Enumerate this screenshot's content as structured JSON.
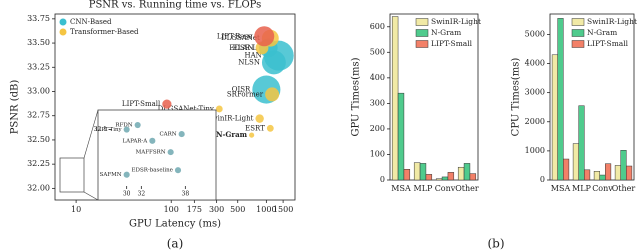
{
  "panel_labels": [
    "(a)",
    "(b)"
  ],
  "chart_data": [
    {
      "type": "scatter",
      "title": "PSNR vs. Running time vs. FLOPs",
      "x_label": "GPU Latency (ms)",
      "y_label": "PSNR (dB)",
      "xscale": "log",
      "xlim": [
        6,
        2000
      ],
      "xticks": [
        10,
        100,
        175,
        300,
        500,
        1000,
        1500
      ],
      "ylim": [
        31.88,
        33.8
      ],
      "yticks": [
        {
          "value": 32,
          "label": "32.00"
        },
        {
          "value": 32.25,
          "label": "32.25"
        },
        {
          "value": 32.5,
          "label": "32.50"
        },
        {
          "value": 32.75,
          "label": "32.75"
        },
        {
          "value": 33,
          "label": "33.00"
        },
        {
          "value": 33.25,
          "label": "33.25"
        },
        {
          "value": 33.5,
          "label": "33.50"
        },
        {
          "value": 33.75,
          "label": "33.75"
        }
      ],
      "legend": "upper left",
      "series": [
        {
          "name": "CNN-Based",
          "color": "#3bbfcf",
          "labels": [
            "HAN",
            "NLSN",
            "EDSR-L",
            "OISR"
          ],
          "x": [
            1350,
            1200,
            1050,
            1000
          ],
          "values": [
            33.37,
            33.3,
            33.45,
            33.02
          ],
          "sizes": [
            150,
            90,
            50,
            130
          ]
        },
        {
          "name": "Transformer-Based",
          "color": "#f5c542",
          "labels": [
            "DLGSANet",
            "ELAN",
            "SRFormer",
            "SwinIR-Light",
            "ESRT",
            "DLGSANet-Tiny",
            "ELAN-Light"
          ],
          "x": [
            1100,
            900,
            1150,
            850,
            1100,
            320,
            250
          ],
          "values": [
            33.55,
            33.45,
            32.97,
            32.72,
            32.62,
            32.82,
            32.72
          ],
          "sizes": [
            40,
            20,
            25,
            6,
            3,
            3,
            3
          ]
        },
        {
          "color": "#e8604c",
          "labels": [
            "LIPT-Base",
            "LIPT-Small"
          ],
          "x": [
            950,
            90
          ],
          "values": [
            33.57,
            32.87
          ],
          "sizes": [
            60,
            8
          ]
        },
        {
          "color": "#f5c542",
          "bold": true,
          "labels": [
            "N-Gram"
          ],
          "x": [
            700
          ],
          "values": [
            32.55
          ],
          "sizes": [
            1
          ]
        }
      ]
    },
    {
      "type": "scatter",
      "xlim": [
        28,
        40
      ],
      "xticks": [
        30,
        32,
        38
      ],
      "ylim": [
        31.85,
        32.16
      ],
      "yticks": [
        32.1
      ],
      "series": [
        {
          "color": "#6fa8b0",
          "labels": [
            "LIPT-Tiny",
            "RFDN",
            "LAPAR-A",
            "CARN",
            "MAFFSRN",
            "EDSR-baseline",
            "SAFMN"
          ],
          "x": [
            30,
            31.5,
            33.5,
            37.5,
            36,
            37,
            30
          ],
          "values": [
            32.1,
            32.12,
            32.05,
            32.08,
            32,
            31.92,
            31.9
          ],
          "sizes": [
            2,
            2,
            2,
            2,
            2,
            2,
            2
          ]
        }
      ]
    },
    {
      "type": "bar",
      "y_label": "GPU Times(ms)",
      "categories": [
        "MSA",
        "MLP",
        "Conv",
        "Other"
      ],
      "ylim": [
        0,
        650
      ],
      "yticks": [
        0,
        100,
        200,
        300,
        400,
        500,
        600
      ],
      "legend": "upper right",
      "series": [
        {
          "name": "SwinIR-Light",
          "color": "#f1eaa6",
          "values": [
            640,
            68,
            5,
            50
          ]
        },
        {
          "name": "N-Gram",
          "color": "#4fcb8d",
          "values": [
            340,
            65,
            12,
            65
          ]
        },
        {
          "name": "LIPT-Small",
          "color": "#f28068",
          "values": [
            42,
            22,
            30,
            25
          ]
        }
      ]
    },
    {
      "type": "bar",
      "y_label": "CPU Times(ms)",
      "categories": [
        "MSA",
        "MLP",
        "Conv",
        "Other"
      ],
      "ylim": [
        0,
        5700
      ],
      "yticks": [
        0,
        1000,
        2000,
        3000,
        4000,
        5000
      ],
      "legend": "upper right",
      "series": [
        {
          "name": "SwinIR-Light",
          "color": "#f1eaa6",
          "values": [
            4300,
            1250,
            300,
            500
          ]
        },
        {
          "name": "N-Gram",
          "color": "#4fcb8d",
          "values": [
            5550,
            2550,
            170,
            1020
          ]
        },
        {
          "name": "LIPT-Small",
          "color": "#f28068",
          "values": [
            720,
            350,
            560,
            480
          ]
        }
      ]
    }
  ]
}
